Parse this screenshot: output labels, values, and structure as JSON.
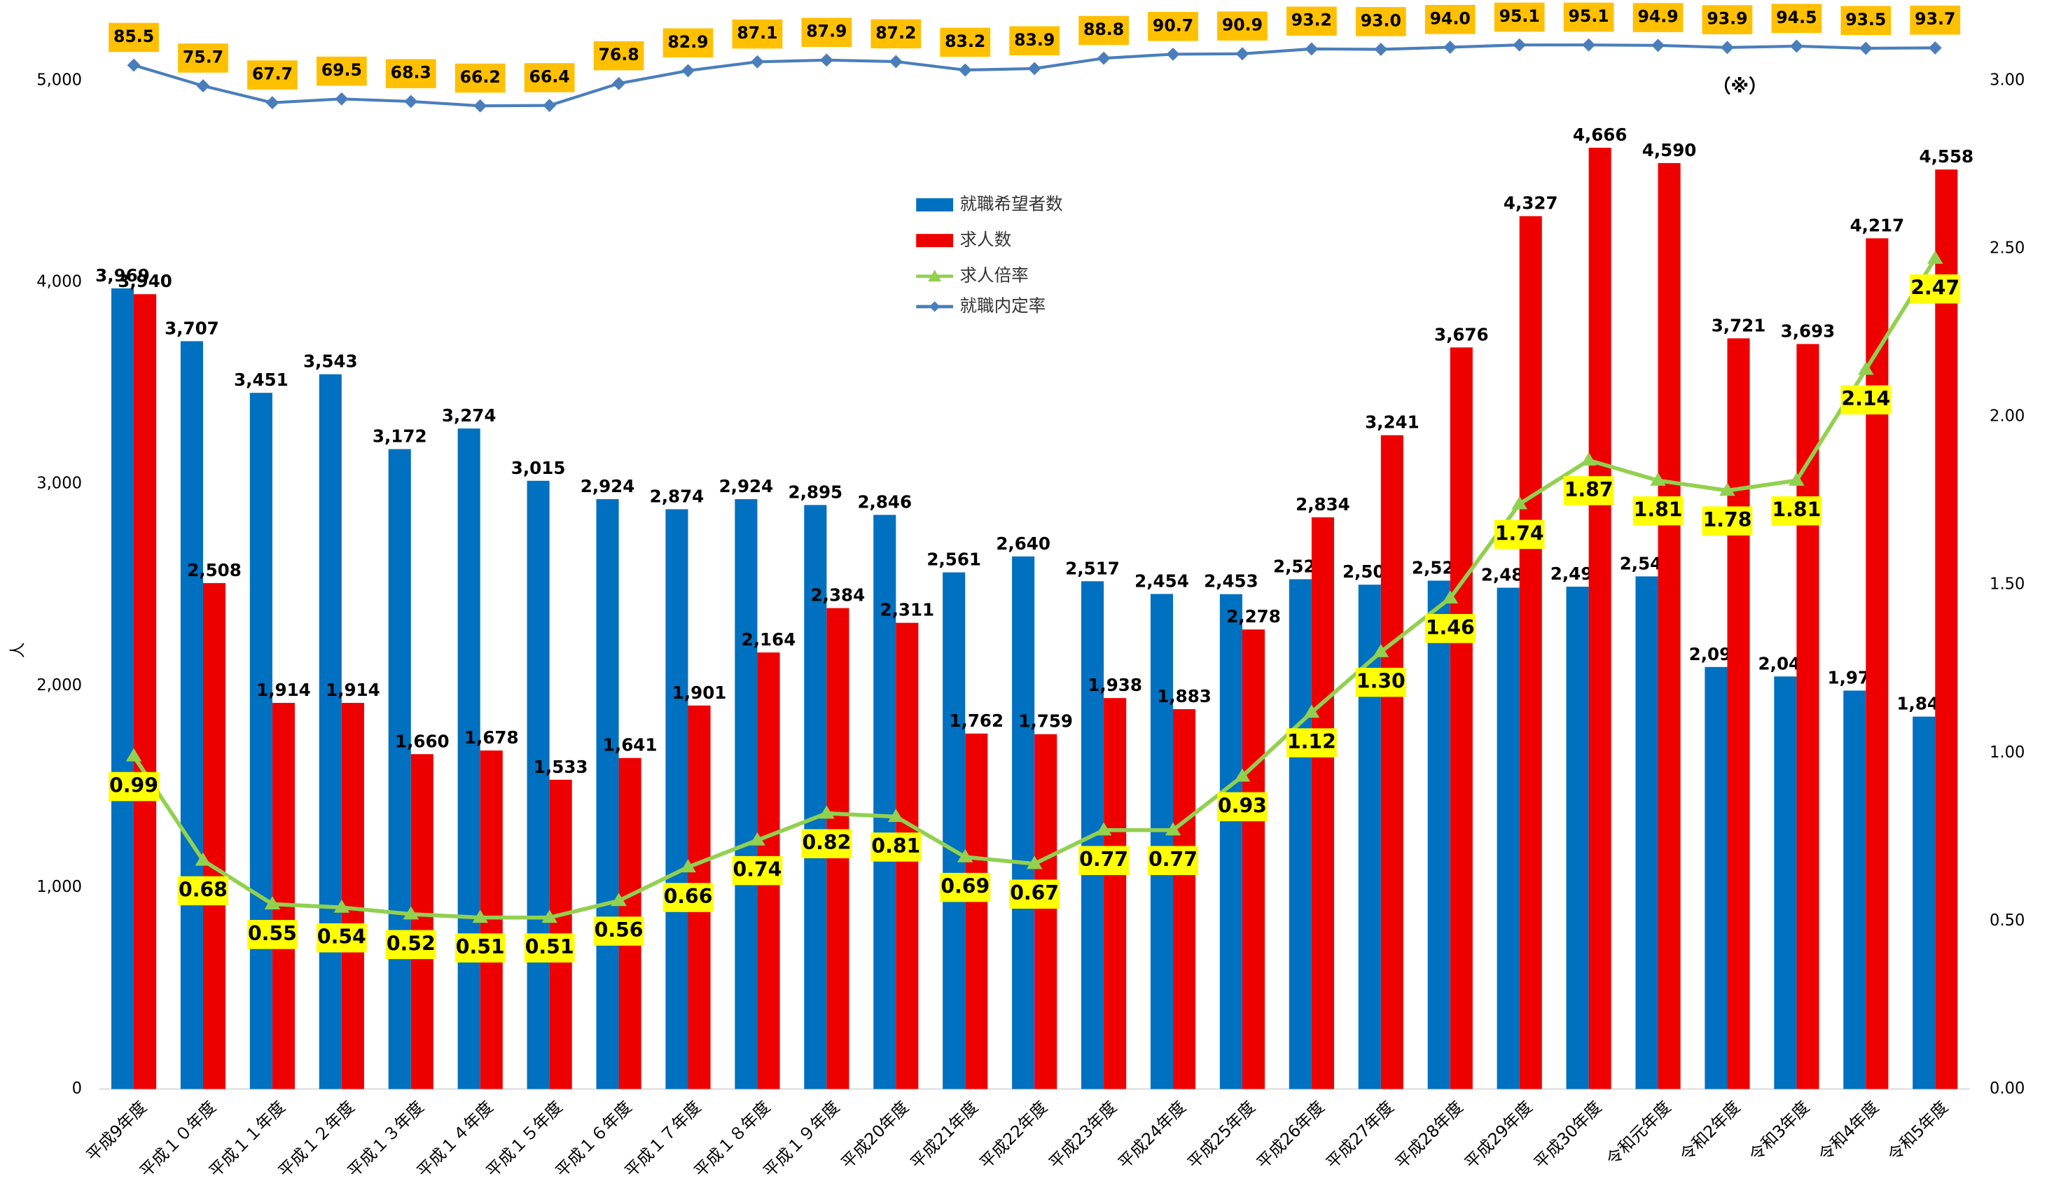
{
  "chart_data": {
    "type": "bar",
    "y_label": "人",
    "annotation": "（※）",
    "legend": "top-center",
    "grid": false,
    "categories": [
      "平成9年度",
      "平成１０年度",
      "平成１１年度",
      "平成１２年度",
      "平成１３年度",
      "平成１４年度",
      "平成１５年度",
      "平成１６年度",
      "平成１７年度",
      "平成１８年度",
      "平成１９年度",
      "平成20年度",
      "平成21年度",
      "平成22年度",
      "平成23年度",
      "平成24年度",
      "平成25年度",
      "平成26年度",
      "平成27年度",
      "平成28年度",
      "平成29年度",
      "平成30年度",
      "令和元年度",
      "令和2年度",
      "令和3年度",
      "令和4年度",
      "令和5年度"
    ],
    "ylim": [
      0,
      5300
    ],
    "yticks": [
      0,
      {
        "value": 1000,
        "label": "1,000"
      },
      {
        "value": 2000,
        "label": "2,000"
      },
      {
        "value": 3000,
        "label": "3,000"
      },
      {
        "value": 4000,
        "label": "4,000"
      },
      {
        "value": 5000,
        "label": "5,000"
      }
    ],
    "y2lim": [
      0,
      3.18
    ],
    "y2ticks": [
      {
        "value": 0,
        "label": "0.00"
      },
      {
        "value": 0.5,
        "label": "0.50"
      },
      {
        "value": 1,
        "label": "1.00"
      },
      {
        "value": 1.5,
        "label": "1.50"
      },
      {
        "value": 2,
        "label": "2.00"
      },
      {
        "value": 2.5,
        "label": "2.50"
      },
      {
        "value": 3,
        "label": "3.00"
      }
    ],
    "y3lim": [
      -400,
      107
    ],
    "series": [
      {
        "name": "就職希望者数",
        "type": "bar",
        "color": "#0070c0",
        "values": [
          3969,
          3707,
          3451,
          3543,
          3172,
          3274,
          3015,
          2924,
          2874,
          2924,
          2895,
          2846,
          2561,
          2640,
          2517,
          2454,
          2453,
          2527,
          2500,
          2520,
          2485,
          2490,
          2541,
          2092,
          2045,
          1975,
          1846
        ],
        "value_labels": [
          "3,969",
          "3,707",
          "3,451",
          "3,543",
          "3,172",
          "3,274",
          "3,015",
          "2,924",
          "2,874",
          "2,924",
          "2,895",
          "2,846",
          "2,561",
          "2,640",
          "2,517",
          "2,454",
          "2,453",
          "2,527",
          "2,500",
          "2,520",
          "2,485",
          "2,490",
          "2,541",
          "2,092",
          "2,045",
          "1,975",
          "1,846"
        ]
      },
      {
        "name": "求人数",
        "type": "bar",
        "color": "#ee0000",
        "values": [
          3940,
          2508,
          1914,
          1914,
          1660,
          1678,
          1533,
          1641,
          1901,
          2164,
          2384,
          2311,
          1762,
          1759,
          1938,
          1883,
          2278,
          2834,
          3241,
          3676,
          4327,
          4666,
          4590,
          3721,
          3693,
          4217,
          4558
        ],
        "value_labels": [
          "3,940",
          "2,508",
          "1,914",
          "1,914",
          "1,660",
          "1,678",
          "1,533",
          "1,641",
          "1,901",
          "2,164",
          "2,384",
          "2,311",
          "1,762",
          "1,759",
          "1,938",
          "1,883",
          "2,278",
          "2,834",
          "3,241",
          "3,676",
          "4,327",
          "4,666",
          "4,590",
          "3,721",
          "3,693",
          "4,217",
          "4,558"
        ]
      },
      {
        "name": "求人倍率",
        "type": "line",
        "axis": "y2",
        "color": "#92d050",
        "marker": "triangle",
        "label_color": "#ffff00",
        "values": [
          0.99,
          0.68,
          0.55,
          0.54,
          0.52,
          0.51,
          0.51,
          0.56,
          0.66,
          0.74,
          0.82,
          0.81,
          0.69,
          0.67,
          0.77,
          0.77,
          0.93,
          1.12,
          1.3,
          1.46,
          1.74,
          1.87,
          1.81,
          1.78,
          1.81,
          2.14,
          2.47
        ],
        "value_labels": [
          "0.99",
          "0.68",
          "0.55",
          "0.54",
          "0.52",
          "0.51",
          "0.51",
          "0.56",
          "0.66",
          "0.74",
          "0.82",
          "0.81",
          "0.69",
          "0.67",
          "0.77",
          "0.77",
          "0.93",
          "1.12",
          "1.30",
          "1.46",
          "1.74",
          "1.87",
          "1.81",
          "1.78",
          "1.81",
          "2.14",
          "2.47"
        ]
      },
      {
        "name": "就職内定率",
        "type": "line",
        "axis": "y3",
        "color": "#4a7ebb",
        "marker": "diamond",
        "label_color": "#ffc000",
        "values": [
          85.5,
          75.7,
          67.7,
          69.5,
          68.3,
          66.2,
          66.4,
          76.8,
          82.9,
          87.1,
          87.9,
          87.2,
          83.2,
          83.9,
          88.8,
          90.7,
          90.9,
          93.2,
          93.0,
          94.0,
          95.1,
          95.1,
          94.9,
          93.9,
          94.5,
          93.5,
          93.7
        ],
        "value_labels": [
          "85.5",
          "75.7",
          "67.7",
          "69.5",
          "68.3",
          "66.2",
          "66.4",
          "76.8",
          "82.9",
          "87.1",
          "87.9",
          "87.2",
          "83.2",
          "83.9",
          "88.8",
          "90.7",
          "90.9",
          "93.2",
          "93.0",
          "94.0",
          "95.1",
          "95.1",
          "94.9",
          "93.9",
          "94.5",
          "93.5",
          "93.7"
        ]
      }
    ]
  }
}
